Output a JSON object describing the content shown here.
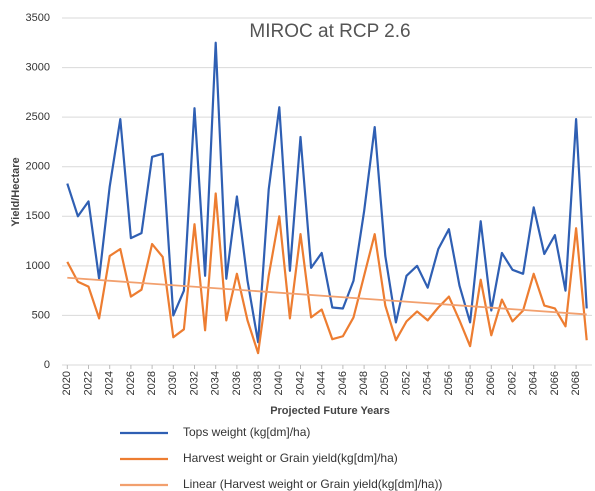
{
  "chart_data": {
    "type": "line",
    "title": "MIROC at RCP 2.6",
    "x_label": "Projected Future Years",
    "y_label": "Yield/Hectare",
    "x": [
      2020,
      2021,
      2022,
      2023,
      2024,
      2025,
      2026,
      2027,
      2028,
      2029,
      2030,
      2031,
      2032,
      2033,
      2034,
      2035,
      2036,
      2037,
      2038,
      2039,
      2040,
      2041,
      2042,
      2043,
      2044,
      2045,
      2046,
      2047,
      2048,
      2049,
      2050,
      2051,
      2052,
      2053,
      2054,
      2055,
      2056,
      2057,
      2058,
      2059,
      2060,
      2061,
      2062,
      2063,
      2064,
      2065,
      2066,
      2067,
      2068,
      2069
    ],
    "xlim": [
      2019.5,
      2069.5
    ],
    "xticks": [
      2020,
      2022,
      2024,
      2026,
      2028,
      2030,
      2032,
      2034,
      2036,
      2038,
      2040,
      2042,
      2044,
      2046,
      2048,
      2050,
      2052,
      2054,
      2056,
      2058,
      2060,
      2062,
      2064,
      2066,
      2068
    ],
    "ylim": [
      0,
      3500
    ],
    "yticks": [
      0,
      500,
      1000,
      1500,
      2000,
      2500,
      3000,
      3500
    ],
    "grid": true,
    "legend": "bottom",
    "series": [
      {
        "name": "Tops weight (kg[dm]/ha)",
        "color": "#2f5fb3",
        "values": [
          1830,
          1500,
          1650,
          870,
          1800,
          2480,
          1280,
          1330,
          2100,
          2130,
          500,
          750,
          2590,
          900,
          3250,
          870,
          1700,
          850,
          230,
          1770,
          2600,
          950,
          2300,
          980,
          1130,
          580,
          570,
          850,
          1550,
          2400,
          1100,
          430,
          900,
          1000,
          780,
          1170,
          1370,
          800,
          430,
          1450,
          550,
          1130,
          960,
          920,
          1590,
          1120,
          1310,
          750,
          2480,
          570
        ]
      },
      {
        "name": "Harvest weight or Grain yield(kg[dm]/ha)",
        "color": "#ed7d31",
        "values": [
          1040,
          840,
          790,
          470,
          1100,
          1170,
          690,
          760,
          1220,
          1090,
          280,
          360,
          1420,
          350,
          1730,
          450,
          920,
          450,
          120,
          900,
          1500,
          470,
          1320,
          480,
          560,
          260,
          290,
          480,
          900,
          1320,
          600,
          250,
          440,
          540,
          450,
          580,
          690,
          450,
          190,
          860,
          300,
          660,
          440,
          550,
          920,
          600,
          570,
          390,
          1380,
          250
        ]
      },
      {
        "name": "Linear (Harvest weight or Grain yield(kg[dm]/ha))",
        "color": "#f2a06e",
        "x": [
          2020,
          2069
        ],
        "values": [
          880,
          510
        ]
      }
    ]
  }
}
